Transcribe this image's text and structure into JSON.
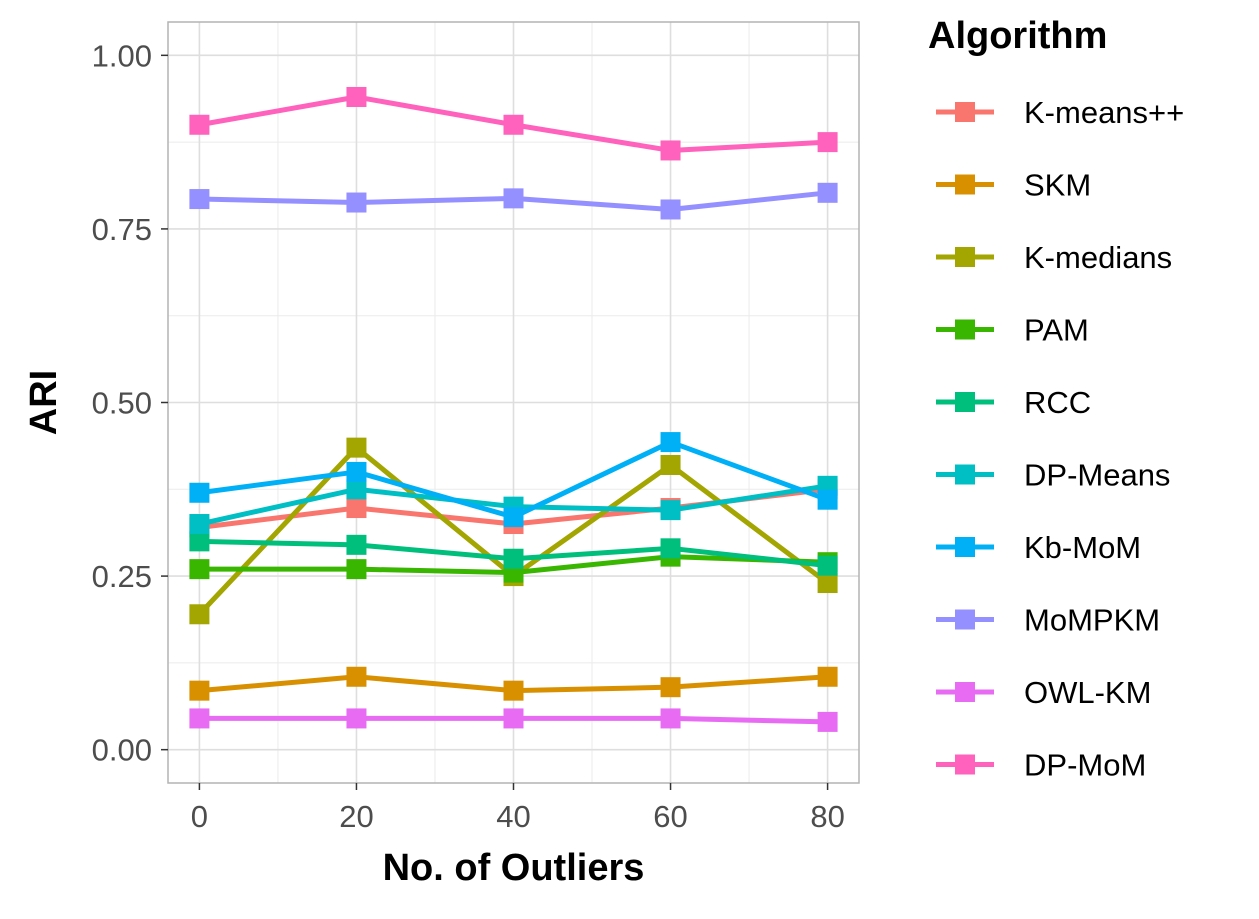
{
  "chart_data": {
    "type": "line",
    "title": "",
    "xlabel": "No. of Outliers",
    "ylabel": "ARI",
    "x": [
      0,
      20,
      40,
      60,
      80
    ],
    "x_ticks": [
      0,
      20,
      40,
      60,
      80
    ],
    "x_tick_labels": [
      "0",
      "20",
      "40",
      "60",
      "80"
    ],
    "y_ticks": [
      0.0,
      0.25,
      0.5,
      0.75,
      1.0
    ],
    "y_tick_labels": [
      "0.00",
      "0.25",
      "0.50",
      "0.75",
      "1.00"
    ],
    "xlim": [
      -4,
      84
    ],
    "ylim": [
      -0.048,
      1.048
    ],
    "grid": true,
    "marker": "square",
    "legend": {
      "title": "Algorithm",
      "position": "right"
    },
    "series": [
      {
        "name": "K-means++",
        "color": "#F8766D",
        "values": [
          0.32,
          0.348,
          0.325,
          0.348,
          0.375
        ]
      },
      {
        "name": "SKM",
        "color": "#D89000",
        "values": [
          0.085,
          0.105,
          0.085,
          0.09,
          0.105
        ]
      },
      {
        "name": "K-medians",
        "color": "#A3A500",
        "values": [
          0.195,
          0.435,
          0.25,
          0.41,
          0.24
        ]
      },
      {
        "name": "PAM",
        "color": "#39B600",
        "values": [
          0.26,
          0.26,
          0.255,
          0.278,
          0.27
        ]
      },
      {
        "name": "RCC",
        "color": "#00BF7D",
        "values": [
          0.3,
          0.295,
          0.275,
          0.29,
          0.265
        ]
      },
      {
        "name": "DP-Means",
        "color": "#00BFC4",
        "values": [
          0.325,
          0.375,
          0.35,
          0.345,
          0.38
        ]
      },
      {
        "name": "Kb-MoM",
        "color": "#00B0F6",
        "values": [
          0.37,
          0.4,
          0.335,
          0.443,
          0.36
        ]
      },
      {
        "name": "MoMPKM",
        "color": "#9590FF",
        "values": [
          0.793,
          0.788,
          0.794,
          0.778,
          0.802
        ]
      },
      {
        "name": "OWL-KM",
        "color": "#E76BF3",
        "values": [
          0.045,
          0.045,
          0.045,
          0.045,
          0.04
        ]
      },
      {
        "name": "DP-MoM",
        "color": "#FF62BC",
        "values": [
          0.9,
          0.94,
          0.9,
          0.863,
          0.875
        ]
      }
    ]
  }
}
